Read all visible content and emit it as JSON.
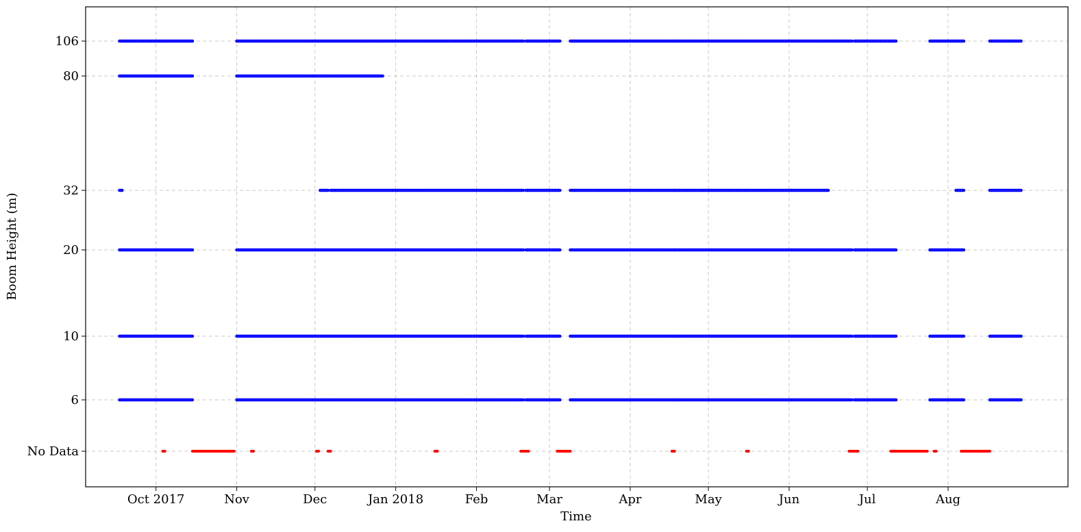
{
  "chart_data": {
    "type": "scatter",
    "title": "",
    "xlabel": "Time",
    "ylabel": "Boom Height (m)",
    "grid": true,
    "x_ticks": [
      {
        "date": "2017-10-01",
        "label": "Oct 2017"
      },
      {
        "date": "2017-11-01",
        "label": "Nov"
      },
      {
        "date": "2017-12-01",
        "label": "Dec"
      },
      {
        "date": "2018-01-01",
        "label": "Jan 2018"
      },
      {
        "date": "2018-02-01",
        "label": "Feb"
      },
      {
        "date": "2018-03-01",
        "label": "Mar"
      },
      {
        "date": "2018-04-01",
        "label": "Apr"
      },
      {
        "date": "2018-05-01",
        "label": "May"
      },
      {
        "date": "2018-06-01",
        "label": "Jun"
      },
      {
        "date": "2018-07-01",
        "label": "Jul"
      },
      {
        "date": "2018-08-01",
        "label": "Aug"
      }
    ],
    "xlim": [
      "2017-09-04",
      "2018-09-16"
    ],
    "y_levels": [
      "No Data",
      "6",
      "10",
      "20",
      "32",
      "80",
      "106"
    ],
    "colors": {
      "data": "#0000ff",
      "no_data": "#ff0000",
      "grid": "#c8c8c8"
    },
    "series": [
      {
        "level": "106",
        "color": "#0000ff",
        "segments": [
          [
            "2017-09-17",
            "2017-10-15"
          ],
          [
            "2017-11-01",
            "2018-02-19"
          ],
          [
            "2018-02-20",
            "2018-03-05"
          ],
          [
            "2018-03-09",
            "2018-04-18"
          ],
          [
            "2018-04-18",
            "2018-06-25"
          ],
          [
            "2018-06-26",
            "2018-07-12"
          ],
          [
            "2018-07-25",
            "2018-08-07"
          ],
          [
            "2018-08-17",
            "2018-08-29"
          ]
        ]
      },
      {
        "level": "80",
        "color": "#0000ff",
        "segments": [
          [
            "2017-09-17",
            "2017-10-15"
          ],
          [
            "2017-11-01",
            "2017-12-27"
          ]
        ]
      },
      {
        "level": "32",
        "color": "#0000ff",
        "segments": [
          [
            "2017-09-17",
            "2017-09-18"
          ],
          [
            "2017-12-03",
            "2017-12-06"
          ],
          [
            "2017-12-07",
            "2018-02-19"
          ],
          [
            "2018-02-20",
            "2018-03-05"
          ],
          [
            "2018-03-09",
            "2018-04-18"
          ],
          [
            "2018-04-18",
            "2018-06-16"
          ],
          [
            "2018-08-04",
            "2018-08-07"
          ],
          [
            "2018-08-17",
            "2018-08-29"
          ]
        ]
      },
      {
        "level": "20",
        "color": "#0000ff",
        "segments": [
          [
            "2017-09-17",
            "2017-10-15"
          ],
          [
            "2017-11-01",
            "2018-02-19"
          ],
          [
            "2018-02-20",
            "2018-03-05"
          ],
          [
            "2018-03-09",
            "2018-04-18"
          ],
          [
            "2018-04-18",
            "2018-06-25"
          ],
          [
            "2018-06-26",
            "2018-07-12"
          ],
          [
            "2018-07-25",
            "2018-08-07"
          ]
        ]
      },
      {
        "level": "10",
        "color": "#0000ff",
        "segments": [
          [
            "2017-09-17",
            "2017-10-15"
          ],
          [
            "2017-11-01",
            "2018-02-19"
          ],
          [
            "2018-02-20",
            "2018-03-05"
          ],
          [
            "2018-03-09",
            "2018-04-18"
          ],
          [
            "2018-04-18",
            "2018-06-25"
          ],
          [
            "2018-06-26",
            "2018-07-12"
          ],
          [
            "2018-07-25",
            "2018-08-07"
          ],
          [
            "2018-08-17",
            "2018-08-29"
          ]
        ]
      },
      {
        "level": "6",
        "color": "#0000ff",
        "segments": [
          [
            "2017-09-17",
            "2017-10-15"
          ],
          [
            "2017-11-01",
            "2018-02-19"
          ],
          [
            "2018-02-20",
            "2018-03-05"
          ],
          [
            "2018-03-09",
            "2018-04-18"
          ],
          [
            "2018-04-18",
            "2018-06-25"
          ],
          [
            "2018-06-26",
            "2018-07-12"
          ],
          [
            "2018-07-25",
            "2018-08-07"
          ],
          [
            "2018-08-17",
            "2018-08-29"
          ]
        ]
      },
      {
        "level": "No Data",
        "color": "#ff0000",
        "segments": [
          [
            "2017-10-04",
            "2017-10-04"
          ],
          [
            "2017-10-15",
            "2017-10-31"
          ],
          [
            "2017-11-07",
            "2017-11-07"
          ],
          [
            "2017-12-02",
            "2017-12-02"
          ],
          [
            "2017-12-06",
            "2017-12-07"
          ],
          [
            "2018-01-16",
            "2018-01-17"
          ],
          [
            "2018-02-18",
            "2018-02-21"
          ],
          [
            "2018-03-04",
            "2018-03-09"
          ],
          [
            "2018-04-17",
            "2018-04-18"
          ],
          [
            "2018-05-16",
            "2018-05-16"
          ],
          [
            "2018-06-24",
            "2018-06-26"
          ],
          [
            "2018-06-27",
            "2018-06-27"
          ],
          [
            "2018-07-10",
            "2018-07-24"
          ],
          [
            "2018-07-27",
            "2018-07-27"
          ],
          [
            "2018-08-06",
            "2018-08-17"
          ]
        ]
      }
    ]
  }
}
